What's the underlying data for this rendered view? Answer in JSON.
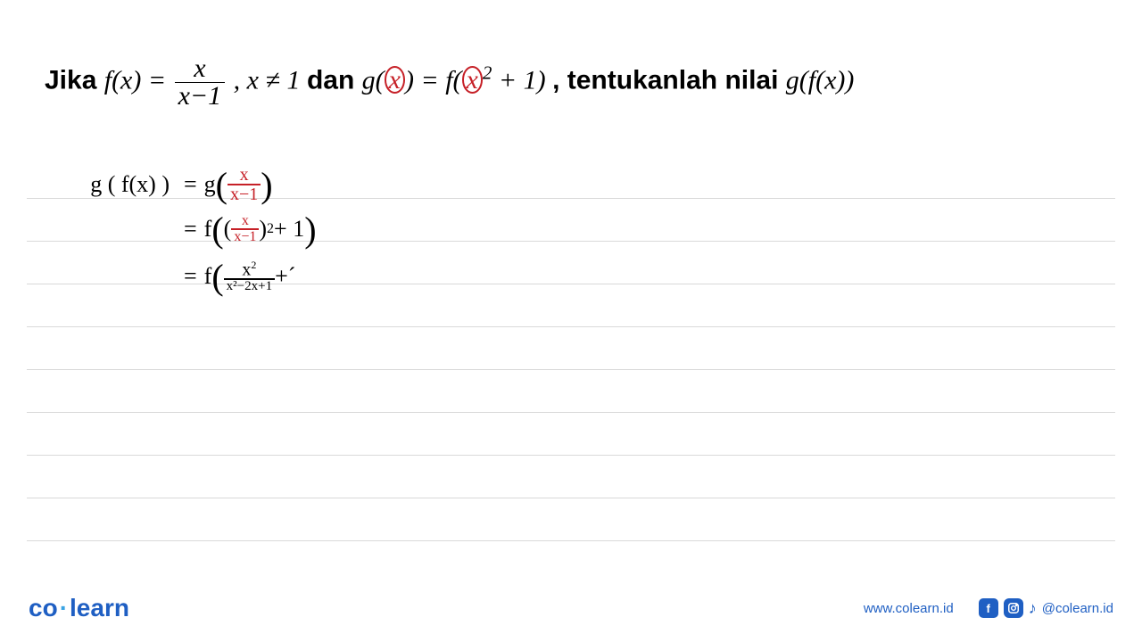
{
  "colors": {
    "text": "#000000",
    "accent": "#c62027",
    "brand_blue": "#1f5fc3",
    "brand_light": "#3aa3e3",
    "line": "#d9d9d9",
    "bg": "#ffffff"
  },
  "problem": {
    "jika": "Jika ",
    "fx_eq": "f(x) = ",
    "frac_num": "x",
    "frac_den": "x−1",
    "comma_cond": ", x ≠ 1 ",
    "dan": "dan ",
    "g_open": "g(",
    "circ_x1": "x",
    "g_close_eq": ") = f(",
    "circ_x2": "x",
    "sq_plus1": " + 1)",
    "tentukan": ", tentukanlah nilai ",
    "gfx": "g(f(x))",
    "sup2": "2"
  },
  "work": {
    "line1": {
      "lhs": "g ( f(x) )",
      "eq": "=",
      "g": "g",
      "lp": "(",
      "frac_num": "x",
      "frac_den": "x−1",
      "rp": ")"
    },
    "line2": {
      "eq": "=",
      "f": "f",
      "lp": "(",
      "ilp": "(",
      "frac_num": "x",
      "frac_den": "x−1",
      "irp": ")",
      "sq": "2",
      "plus1": "+ 1",
      "rp": ")"
    },
    "line3": {
      "eq": "=",
      "f": "f",
      "lp": "(",
      "num": "x",
      "num_sq": "2",
      "den": "x²−2x+1",
      "plus": " + ",
      "trail": "´",
      "rp": ""
    }
  },
  "footer": {
    "logo_co": "co",
    "logo_dot": "·",
    "logo_learn": "learn",
    "url": "www.colearn.id",
    "handle": "@colearn.id",
    "fb": "f",
    "tk": "♪"
  },
  "layout": {
    "line_count": 9
  }
}
